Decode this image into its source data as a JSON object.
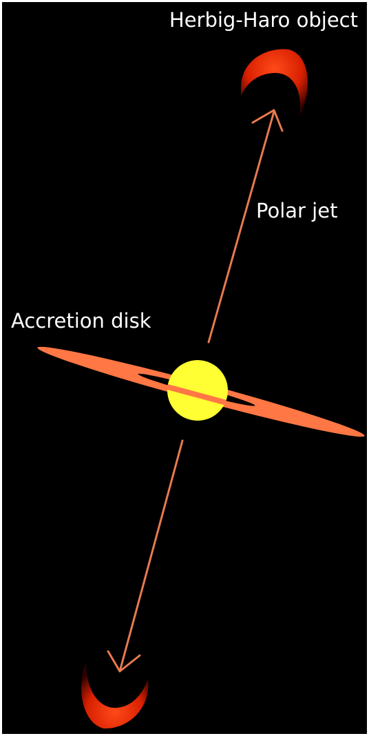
{
  "labels": {
    "herbig_haro": "Herbig-Haro object",
    "polar_jet": "Polar jet",
    "accretion_disk": "Accretion disk"
  }
}
